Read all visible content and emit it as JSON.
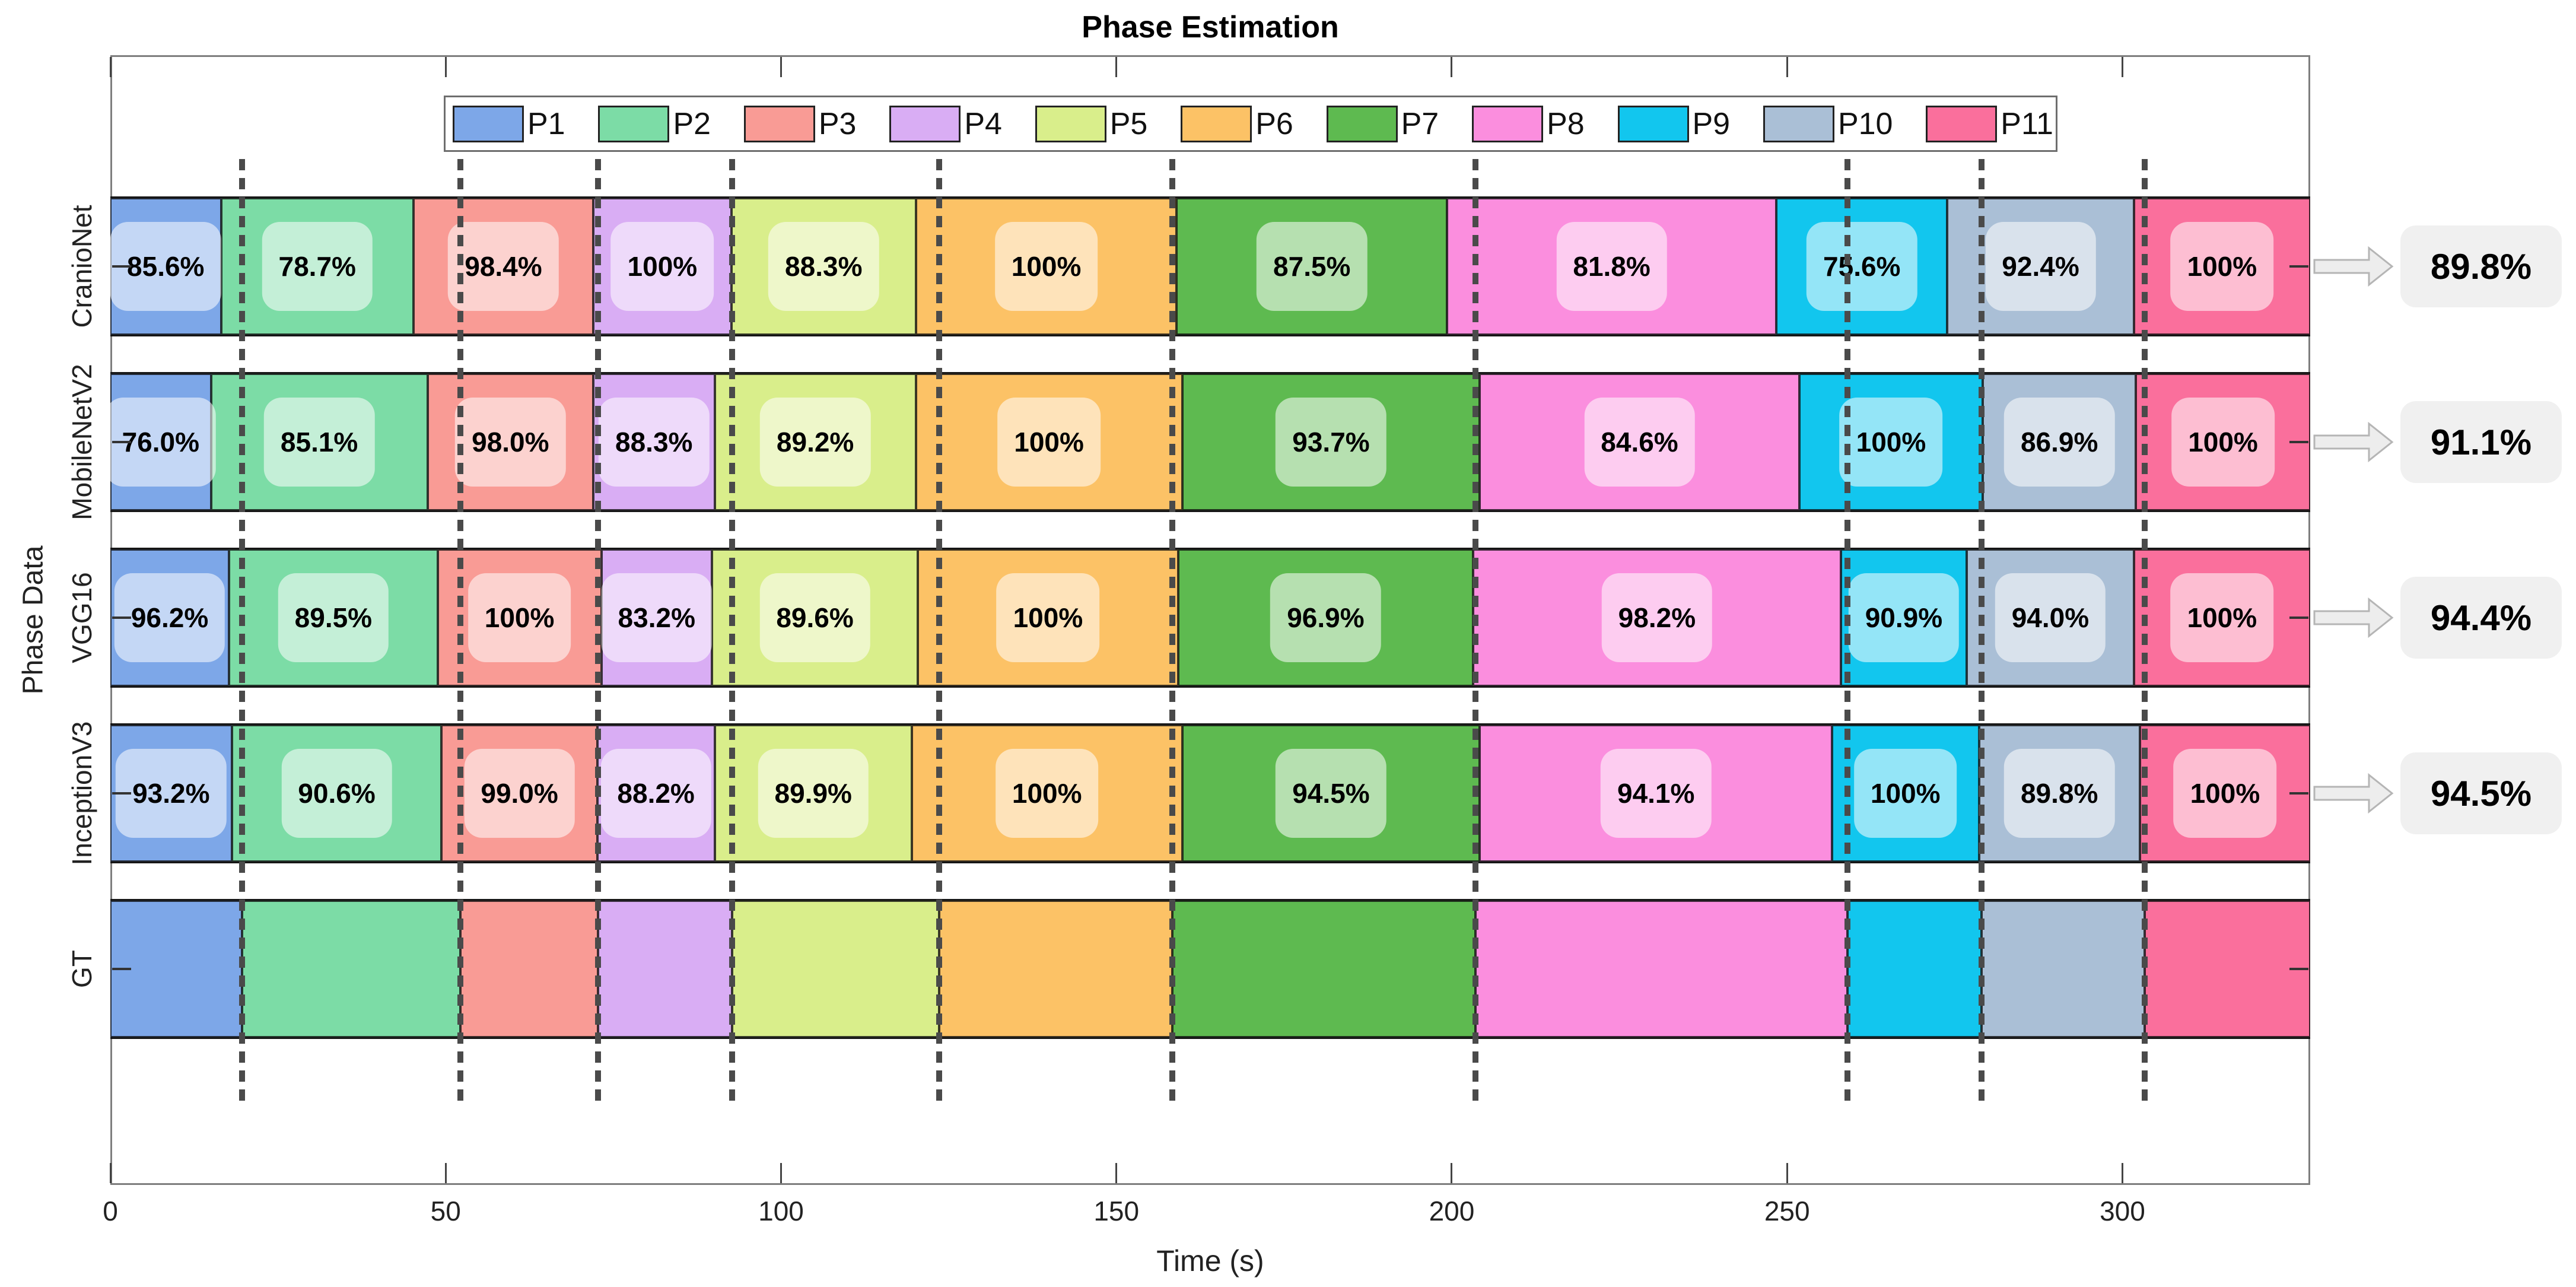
{
  "title": "Phase Estimation",
  "chart_data": {
    "type": "bar",
    "subtype": "horizontal-stacked-phase-timeline",
    "title": "Phase Estimation",
    "xlabel": "Time (s)",
    "ylabel": "Phase Data",
    "x_ticks": [
      0,
      50,
      100,
      150,
      200,
      250,
      300
    ],
    "x_max": 328,
    "grid": "off",
    "legend_position": "top-inside",
    "phases": [
      {
        "label": "P1",
        "color": "#7da7e8"
      },
      {
        "label": "P2",
        "color": "#7cdca6"
      },
      {
        "label": "P3",
        "color": "#f99b95"
      },
      {
        "label": "P4",
        "color": "#d9adf4"
      },
      {
        "label": "P5",
        "color": "#d9ee8b"
      },
      {
        "label": "P6",
        "color": "#fcc266"
      },
      {
        "label": "P7",
        "color": "#5eba50"
      },
      {
        "label": "P8",
        "color": "#fb8ede"
      },
      {
        "label": "P9",
        "color": "#12c6ee"
      },
      {
        "label": "P10",
        "color": "#aabfd6"
      },
      {
        "label": "P11",
        "color": "#fa6f9c"
      }
    ],
    "gt_boundaries_s": [
      19.6,
      52.2,
      72.7,
      92.7,
      123.6,
      158.3,
      203.5,
      259,
      279,
      303.3
    ],
    "rows": [
      {
        "label": "CranioNet",
        "segment_boundaries_s": [
          0,
          16.5,
          45.2,
          72.0,
          92.6,
          120.1,
          159.0,
          199.3,
          248.4,
          273.9,
          301.7,
          328
        ],
        "segment_accuracy_labels": [
          "85.6%",
          "78.7%",
          "98.4%",
          "100%",
          "88.3%",
          "100%",
          "87.5%",
          "81.8%",
          "75.6%",
          "92.4%",
          "100%"
        ],
        "overall_accuracy": "89.8%"
      },
      {
        "label": "MobileNetV2",
        "segment_boundaries_s": [
          0,
          15.0,
          47.3,
          72.0,
          90.1,
          120.1,
          159.8,
          204.2,
          251.8,
          279.2,
          302.0,
          328
        ],
        "segment_accuracy_labels": [
          "76.0%",
          "85.1%",
          "98.0%",
          "88.3%",
          "89.2%",
          "100%",
          "93.7%",
          "84.6%",
          "100%",
          "86.9%",
          "100%"
        ],
        "overall_accuracy": "91.1%"
      },
      {
        "label": "VGG16",
        "segment_boundaries_s": [
          0,
          17.7,
          48.8,
          73.2,
          89.7,
          120.4,
          159.2,
          203.2,
          258.0,
          276.8,
          301.7,
          328
        ],
        "segment_accuracy_labels": [
          "96.2%",
          "89.5%",
          "100%",
          "83.2%",
          "89.6%",
          "100%",
          "96.9%",
          "98.2%",
          "90.9%",
          "94.0%",
          "100%"
        ],
        "overall_accuracy": "94.4%"
      },
      {
        "label": "InceptionV3",
        "segment_boundaries_s": [
          0,
          18.1,
          49.4,
          72.6,
          90.1,
          119.5,
          159.8,
          204.2,
          256.7,
          278.6,
          302.6,
          328
        ],
        "segment_accuracy_labels": [
          "93.2%",
          "90.6%",
          "99.0%",
          "88.2%",
          "89.9%",
          "100%",
          "94.5%",
          "94.1%",
          "100%",
          "89.8%",
          "100%"
        ],
        "overall_accuracy": "94.5%"
      },
      {
        "label": "GT",
        "segment_boundaries_s": [
          0,
          19.6,
          52.2,
          72.7,
          92.7,
          123.6,
          158.3,
          203.5,
          259,
          279,
          303.3,
          328
        ]
      }
    ]
  }
}
